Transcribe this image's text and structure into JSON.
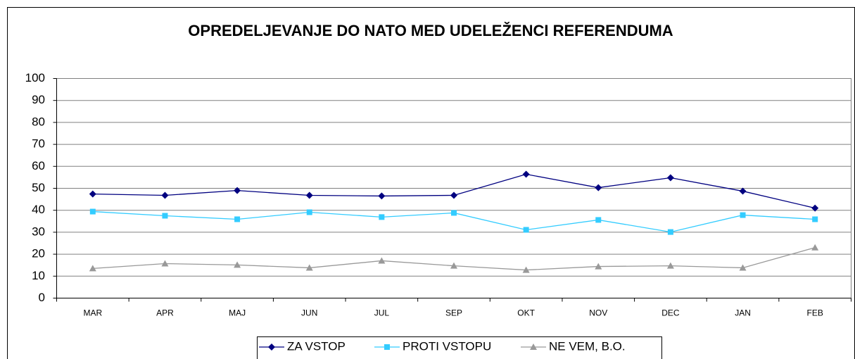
{
  "chart_data": {
    "type": "line",
    "title": "OPREDELJEVANJE DO NATO MED UDELEŽENCI REFERENDUMA",
    "categories": [
      "MAR",
      "APR",
      "MAJ",
      "JUN",
      "JUL",
      "SEP",
      "OKT",
      "NOV",
      "DEC",
      "JAN",
      "FEB"
    ],
    "series": [
      {
        "name": "ZA VSTOP",
        "color": "#000080",
        "marker": "diamond",
        "values": [
          47.4,
          46.8,
          49,
          46.8,
          46.5,
          46.8,
          56.4,
          50.3,
          54.8,
          48.7,
          41
        ]
      },
      {
        "name": "PROTI VSTOPU",
        "color": "#33ccff",
        "marker": "square",
        "values": [
          39.4,
          37.5,
          35.9,
          39.1,
          36.9,
          38.8,
          31.1,
          35.6,
          30.1,
          37.8,
          35.9
        ]
      },
      {
        "name": "NE VEM, B.O.",
        "color": "#999999",
        "marker": "triangle",
        "values": [
          13.5,
          15.7,
          15.1,
          13.8,
          17,
          14.7,
          12.8,
          14.4,
          14.7,
          13.8,
          23
        ]
      }
    ],
    "ylim": [
      0,
      100
    ],
    "yticks": [
      0,
      10,
      20,
      30,
      40,
      50,
      60,
      70,
      80,
      90,
      100
    ],
    "grid": true,
    "legend": "bottom"
  }
}
